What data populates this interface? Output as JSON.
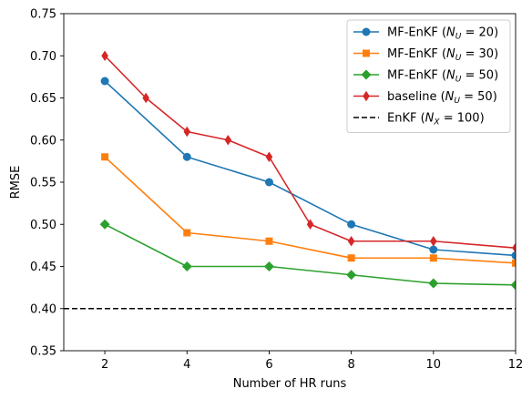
{
  "chart_data": {
    "type": "line",
    "xlabel": "Number of HR runs",
    "ylabel": "RMSE",
    "xlim": [
      1,
      12
    ],
    "ylim": [
      0.35,
      0.75
    ],
    "x_ticks": [
      2,
      4,
      6,
      8,
      10,
      12
    ],
    "y_ticks": [
      0.35,
      0.4,
      0.45,
      0.5,
      0.55,
      0.6,
      0.65,
      0.7,
      0.75
    ],
    "x_tick_labels": [
      "2",
      "4",
      "6",
      "8",
      "10",
      "12"
    ],
    "y_tick_labels": [
      "0.35",
      "0.40",
      "0.45",
      "0.50",
      "0.55",
      "0.60",
      "0.65",
      "0.70",
      "0.75"
    ],
    "grid": false,
    "legend_position": "top-right",
    "series": [
      {
        "name_prefix": "MF-EnKF (",
        "name_var": "N",
        "name_sub": "U",
        "name_eq": " = 20",
        "name_suffix": ")",
        "color": "#1f77b4",
        "marker": "circle",
        "x": [
          2,
          4,
          6,
          8,
          10,
          12
        ],
        "y": [
          0.67,
          0.58,
          0.55,
          0.5,
          0.47,
          0.463
        ]
      },
      {
        "name_prefix": "MF-EnKF (",
        "name_var": "N",
        "name_sub": "U",
        "name_eq": " = 30",
        "name_suffix": ")",
        "color": "#ff7f0e",
        "marker": "square",
        "x": [
          2,
          4,
          6,
          8,
          10,
          12
        ],
        "y": [
          0.58,
          0.49,
          0.48,
          0.46,
          0.46,
          0.454
        ]
      },
      {
        "name_prefix": "MF-EnKF (",
        "name_var": "N",
        "name_sub": "U",
        "name_eq": " = 50",
        "name_suffix": ")",
        "color": "#2ca02c",
        "marker": "diamond",
        "x": [
          2,
          4,
          6,
          8,
          10,
          12
        ],
        "y": [
          0.5,
          0.45,
          0.45,
          0.44,
          0.43,
          0.428
        ]
      },
      {
        "name_prefix": "baseline (",
        "name_var": "N",
        "name_sub": "U",
        "name_eq": " = 50",
        "name_suffix": ")",
        "color": "#d62728",
        "marker": "thin_diamond",
        "x": [
          2,
          3,
          4,
          5,
          6,
          7,
          8,
          10,
          12
        ],
        "y": [
          0.7,
          0.65,
          0.61,
          0.6,
          0.58,
          0.5,
          0.48,
          0.48,
          0.472
        ]
      },
      {
        "name_prefix": "EnKF (",
        "name_var": "N",
        "name_sub": "X",
        "name_eq": " = 100",
        "name_suffix": ")",
        "color": "#000000",
        "marker": "none",
        "dashed": true,
        "y_const": 0.4
      }
    ]
  }
}
